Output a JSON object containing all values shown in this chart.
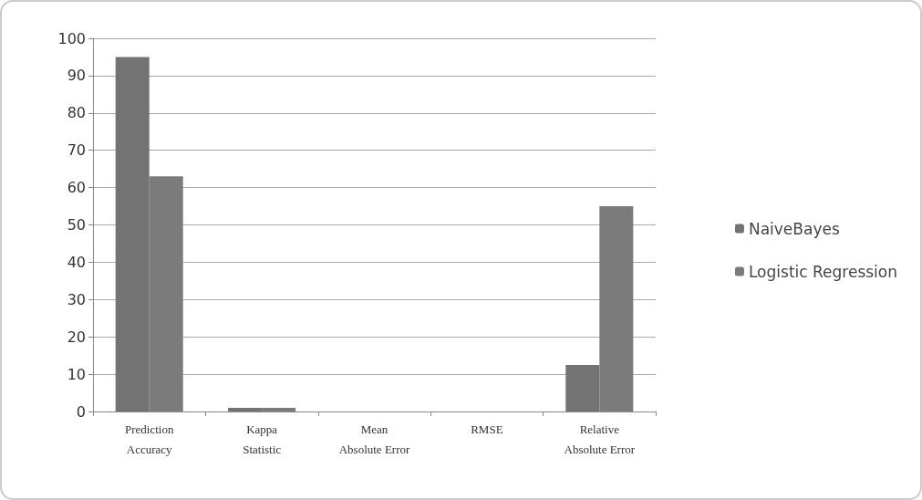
{
  "chart_data": {
    "type": "bar",
    "categories": [
      "Prediction\nAccuracy",
      "Kappa\nStatistic",
      "Mean\nAbsolute Error",
      "RMSE",
      "Relative\nAbsolute Error"
    ],
    "series": [
      {
        "name": "NaiveBayes",
        "color": "#737373",
        "values": [
          95,
          1,
          0,
          0,
          12.5
        ]
      },
      {
        "name": "Logistic Regression",
        "color": "#7b7b7b",
        "values": [
          63,
          1,
          0,
          0,
          55
        ]
      }
    ],
    "ylim": [
      0,
      100
    ],
    "yticks": [
      0,
      10,
      20,
      30,
      40,
      50,
      60,
      70,
      80,
      90,
      100
    ],
    "grid": "y",
    "legend": "right"
  }
}
